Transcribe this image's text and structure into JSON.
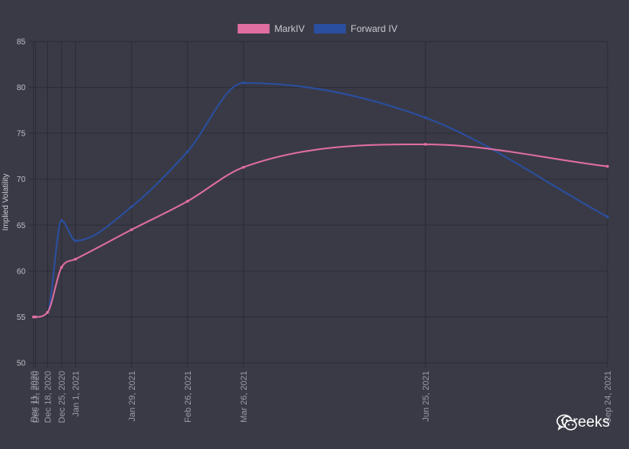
{
  "chart_data": {
    "type": "line",
    "title": "",
    "xlabel": "",
    "ylabel": "Implied Volatility",
    "ylim": [
      50,
      85
    ],
    "y_ticks": [
      50,
      55,
      60,
      65,
      70,
      75,
      80,
      85
    ],
    "grid": true,
    "legend_position": "top-center",
    "x": [
      "Dec 11, 2020",
      "Dec 12, 2020",
      "Dec 18, 2020",
      "Dec 25, 2020",
      "Jan 1, 2021",
      "Jan 29, 2021",
      "Feb 26, 2021",
      "Mar 26, 2021",
      "Jun 25, 2021",
      "Sep 24, 2021"
    ],
    "series": [
      {
        "name": "MarkIV",
        "color": "#e06ea0",
        "values": [
          55.0,
          55.0,
          55.5,
          60.4,
          61.3,
          64.5,
          67.6,
          71.3,
          73.8,
          71.4
        ]
      },
      {
        "name": "Forward IV",
        "color": "#2a4fa0",
        "values": [
          55.0,
          55.0,
          55.5,
          65.5,
          63.3,
          67.0,
          73.0,
          80.5,
          76.7,
          65.9
        ]
      }
    ]
  },
  "watermark": {
    "text": "Greeks",
    "icon": "wechat-icon"
  }
}
